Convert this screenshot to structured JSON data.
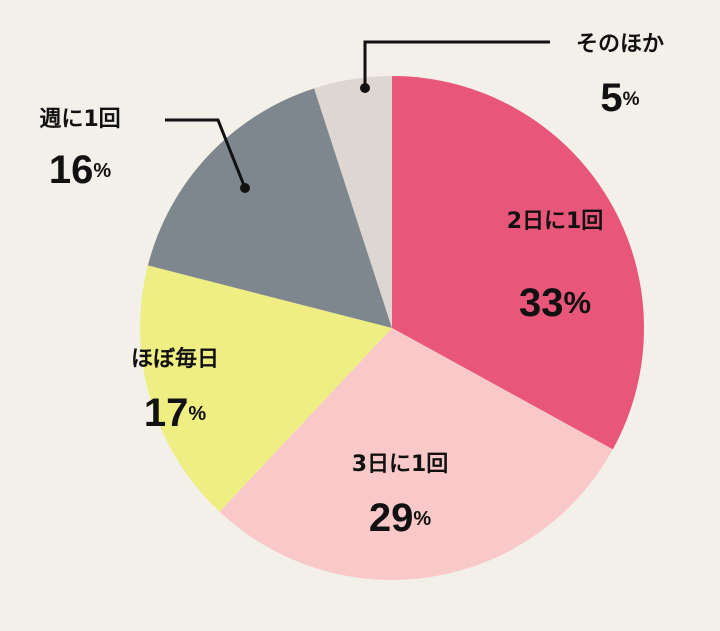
{
  "chart_data": {
    "type": "pie",
    "categories": [
      "2日に1回",
      "3日に1回",
      "ほぼ毎日",
      "週に1回",
      "そのほか"
    ],
    "values": [
      33,
      29,
      17,
      16,
      5
    ],
    "value_labels": [
      "33%",
      "29%",
      "17%",
      "16%",
      "5%"
    ],
    "colors": [
      "#e8567a",
      "#f8c9c8",
      "#eeee82",
      "#7f878e",
      "#ddd6d1"
    ]
  }
}
